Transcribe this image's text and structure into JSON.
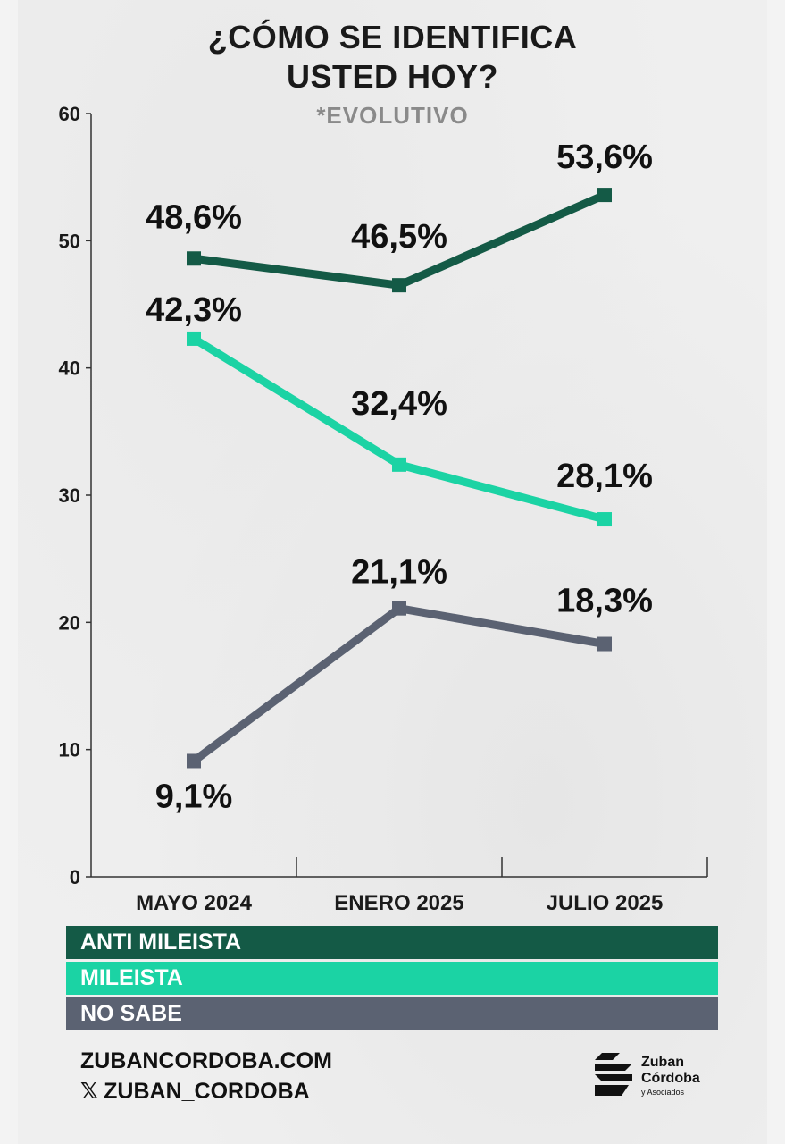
{
  "title_line1": "¿CÓMO SE IDENTIFICA",
  "title_line2": "USTED HOY?",
  "subtitle": "*EVOLUTIVO",
  "colors": {
    "anti": "#145a46",
    "mileista": "#1bd3a4",
    "no_sabe": "#5b6272",
    "axis": "#333333"
  },
  "chart_data": {
    "type": "line",
    "categories": [
      "MAYO 2024",
      "ENERO 2025",
      "JULIO 2025"
    ],
    "ylim": [
      0,
      60
    ],
    "yticks": [
      0,
      10,
      20,
      30,
      40,
      50,
      60
    ],
    "grid": false,
    "series": [
      {
        "name": "ANTI MILEISTA",
        "color": "#145a46",
        "values": [
          48.6,
          46.5,
          53.6
        ],
        "labels": [
          "48,6%",
          "46,5%",
          "53,6%"
        ]
      },
      {
        "name": "MILEISTA",
        "color": "#1bd3a4",
        "values": [
          42.3,
          32.4,
          28.1
        ],
        "labels": [
          "42,3%",
          "32,4%",
          "28,1%"
        ]
      },
      {
        "name": "NO SABE",
        "color": "#5b6272",
        "values": [
          9.1,
          21.1,
          18.3
        ],
        "labels": [
          "9,1%",
          "21,1%",
          "18,3%"
        ]
      }
    ]
  },
  "legend": [
    {
      "label": "ANTI MILEISTA",
      "color": "#145a46"
    },
    {
      "label": "MILEISTA",
      "color": "#1bd3a4"
    },
    {
      "label": "NO SABE",
      "color": "#5b6272"
    }
  ],
  "footer": {
    "website": "ZUBANCORDOBA.COM",
    "x_handle": "ZUBAN_CORDOBA",
    "x_icon": "x-logo-icon"
  },
  "logo": {
    "line1": "Zuban",
    "line2": "Córdoba",
    "line3": "y Asociados",
    "icon": "zuban-logo-icon"
  }
}
